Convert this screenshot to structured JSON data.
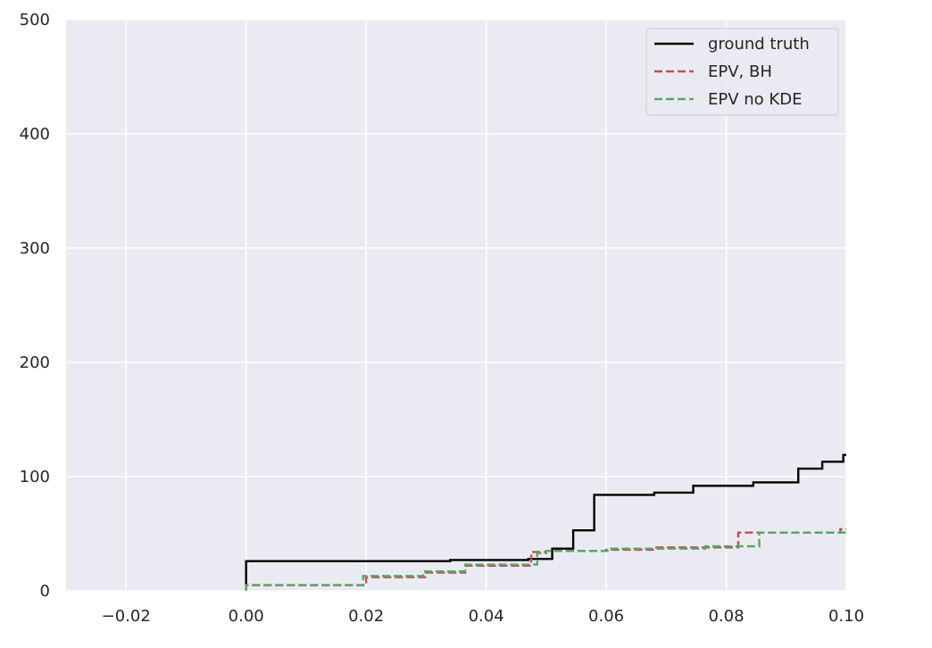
{
  "chart_data": {
    "type": "line",
    "title": "",
    "xlabel": "",
    "ylabel": "",
    "xlim": [
      -0.03,
      0.1
    ],
    "ylim": [
      0,
      500
    ],
    "grid": true,
    "legend_position": "top-right",
    "x_ticks": [
      {
        "value": -0.02,
        "label": "−0.02"
      },
      {
        "value": 0.0,
        "label": "0.00"
      },
      {
        "value": 0.02,
        "label": "0.02"
      },
      {
        "value": 0.04,
        "label": "0.04"
      },
      {
        "value": 0.06,
        "label": "0.06"
      },
      {
        "value": 0.08,
        "label": "0.08"
      },
      {
        "value": 0.1,
        "label": "0.10"
      }
    ],
    "y_ticks": [
      {
        "value": 0,
        "label": "0"
      },
      {
        "value": 100,
        "label": "100"
      },
      {
        "value": 200,
        "label": "200"
      },
      {
        "value": 300,
        "label": "300"
      },
      {
        "value": 400,
        "label": "400"
      },
      {
        "value": 500,
        "label": "500"
      }
    ],
    "series": [
      {
        "name": "ground truth",
        "color": "#000000",
        "style": "solid",
        "points": [
          [
            0.0,
            0
          ],
          [
            0.0,
            26
          ],
          [
            0.034,
            26
          ],
          [
            0.034,
            27
          ],
          [
            0.047,
            27
          ],
          [
            0.047,
            28
          ],
          [
            0.051,
            28
          ],
          [
            0.051,
            37
          ],
          [
            0.0545,
            37
          ],
          [
            0.0545,
            53
          ],
          [
            0.058,
            53
          ],
          [
            0.058,
            84
          ],
          [
            0.068,
            84
          ],
          [
            0.068,
            86
          ],
          [
            0.0745,
            86
          ],
          [
            0.0745,
            92
          ],
          [
            0.0845,
            92
          ],
          [
            0.0845,
            95
          ],
          [
            0.092,
            95
          ],
          [
            0.092,
            107
          ],
          [
            0.096,
            107
          ],
          [
            0.096,
            113
          ],
          [
            0.0995,
            113
          ],
          [
            0.0995,
            119
          ],
          [
            0.1,
            119
          ]
        ]
      },
      {
        "name": "EPV, BH",
        "color": "#c44e52",
        "style": "dashed",
        "points": [
          [
            0.0,
            0
          ],
          [
            0.0,
            5
          ],
          [
            0.02,
            5
          ],
          [
            0.02,
            12
          ],
          [
            0.03,
            12
          ],
          [
            0.03,
            16
          ],
          [
            0.0365,
            16
          ],
          [
            0.0365,
            22
          ],
          [
            0.0475,
            22
          ],
          [
            0.0475,
            34
          ],
          [
            0.05,
            34
          ],
          [
            0.05,
            35
          ],
          [
            0.06,
            35
          ],
          [
            0.06,
            36
          ],
          [
            0.068,
            36
          ],
          [
            0.068,
            38
          ],
          [
            0.082,
            38
          ],
          [
            0.082,
            51
          ],
          [
            0.099,
            51
          ],
          [
            0.099,
            54
          ],
          [
            0.1,
            54
          ]
        ]
      },
      {
        "name": "EPV no KDE",
        "color": "#55a868",
        "style": "dashed",
        "points": [
          [
            0.0,
            0
          ],
          [
            0.0,
            5
          ],
          [
            0.0195,
            5
          ],
          [
            0.0195,
            13
          ],
          [
            0.0295,
            13
          ],
          [
            0.0295,
            17
          ],
          [
            0.0365,
            17
          ],
          [
            0.0365,
            23
          ],
          [
            0.0485,
            23
          ],
          [
            0.0485,
            33
          ],
          [
            0.05,
            33
          ],
          [
            0.05,
            35
          ],
          [
            0.0605,
            35
          ],
          [
            0.0605,
            37
          ],
          [
            0.0765,
            37
          ],
          [
            0.0765,
            39
          ],
          [
            0.0855,
            39
          ],
          [
            0.0855,
            51
          ],
          [
            0.1,
            51
          ]
        ]
      }
    ]
  }
}
